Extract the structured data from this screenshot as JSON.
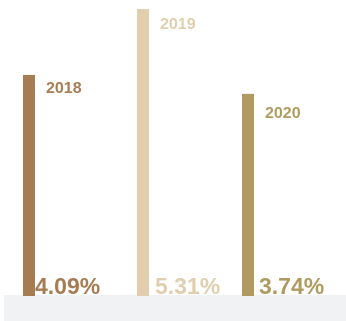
{
  "chart_data": {
    "type": "bar",
    "title": "",
    "xlabel": "",
    "ylabel": "",
    "categories": [
      "2018",
      "2019",
      "2020"
    ],
    "values": [
      4.09,
      5.31,
      3.74
    ],
    "value_labels": [
      "4.09%",
      "5.31%",
      "3.74%"
    ],
    "colors": [
      "#a67c52",
      "#e0ceaf",
      "#b09a60"
    ],
    "ylim": [
      0,
      5.31
    ],
    "grid": false,
    "legend": "none"
  }
}
